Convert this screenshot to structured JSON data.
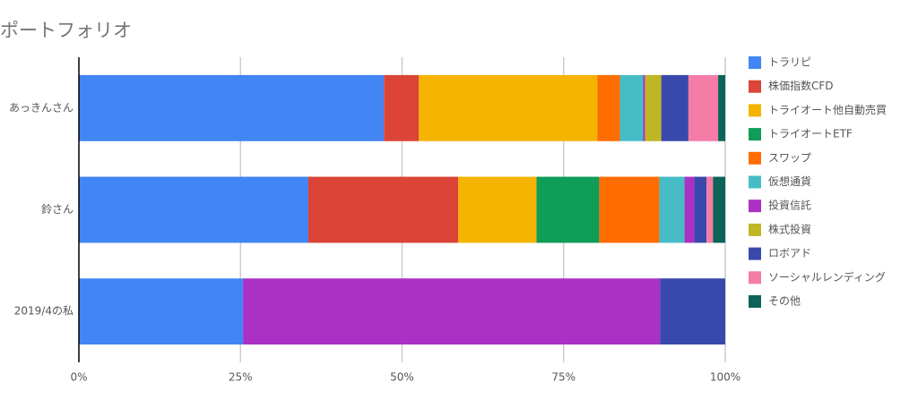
{
  "chart_data": {
    "type": "stacked-bar-horizontal",
    "title": "ポートフォリオ",
    "categories": [
      "あっきんさん",
      "鈴さん",
      "2019/4の私"
    ],
    "series": [
      {
        "name": "トラリピ",
        "color": "#4285f4",
        "values": [
          47.2,
          35.5,
          25.4
        ]
      },
      {
        "name": "株価指数CFD",
        "color": "#db4437",
        "values": [
          5.4,
          23.2,
          0
        ]
      },
      {
        "name": "トライオート他自動売買",
        "color": "#f4b400",
        "values": [
          27.6,
          12.1,
          0
        ]
      },
      {
        "name": "トライオートETF",
        "color": "#0f9d58",
        "values": [
          0,
          9.7,
          0
        ]
      },
      {
        "name": "スワップ",
        "color": "#ff6d00",
        "values": [
          3.5,
          9.3,
          0
        ]
      },
      {
        "name": "仮想通貨",
        "color": "#46bdc6",
        "values": [
          3.6,
          3.9,
          0
        ]
      },
      {
        "name": "投資信託",
        "color": "#ab30c4",
        "values": [
          0.3,
          1.5,
          64.5
        ]
      },
      {
        "name": "株式投資",
        "color": "#c0b624",
        "values": [
          2.5,
          0,
          0
        ]
      },
      {
        "name": "ロボアド",
        "color": "#3949ab",
        "values": [
          4.2,
          1.9,
          10.1
        ]
      },
      {
        "name": "ソーシャルレンディング",
        "color": "#f57ca6",
        "values": [
          4.6,
          1.0,
          0
        ]
      },
      {
        "name": "その他",
        "color": "#0b6457",
        "values": [
          1.1,
          1.9,
          0
        ]
      }
    ],
    "xlim": [
      0,
      100
    ],
    "xticks": [
      {
        "value": 0,
        "label": "0%"
      },
      {
        "value": 25,
        "label": "25%"
      },
      {
        "value": 50,
        "label": "50%"
      },
      {
        "value": 75,
        "label": "75%"
      },
      {
        "value": 100,
        "label": "100%"
      }
    ],
    "grid": true,
    "legend": "right"
  }
}
